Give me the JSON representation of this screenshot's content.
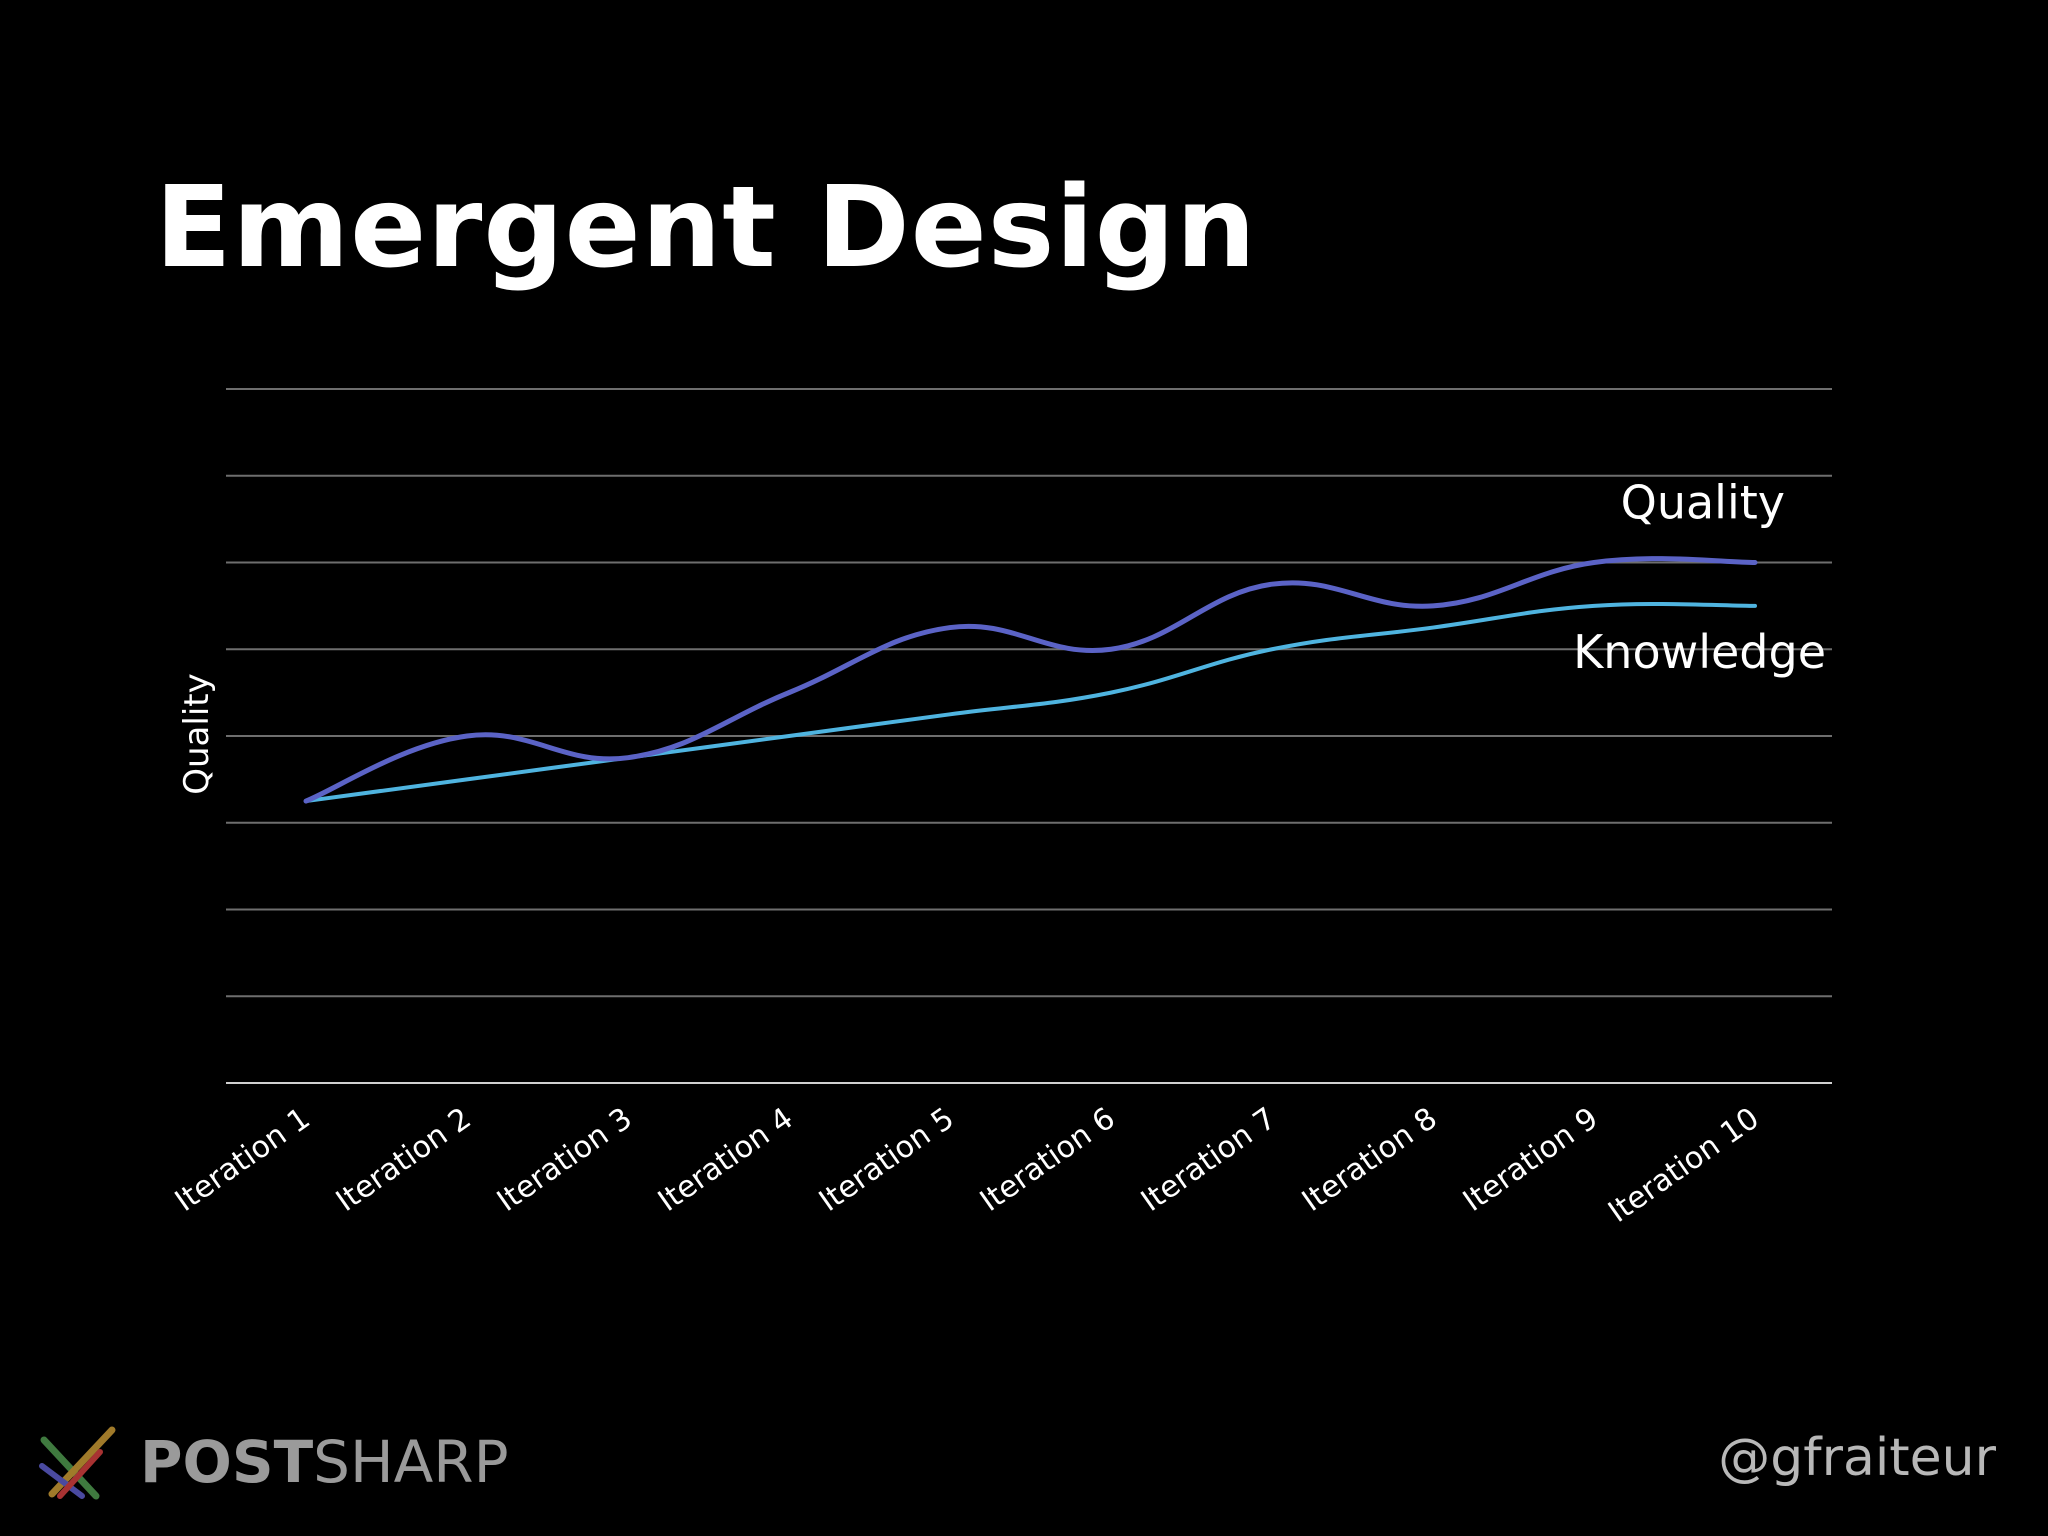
{
  "slide": {
    "title": "Emergent Design"
  },
  "footer": {
    "logo_bold": "POST",
    "logo_light": "SHARP",
    "handle": "@gfraiteur"
  },
  "colors": {
    "background": "#000000",
    "quality_line": "#5b63c6",
    "knowledge_line": "#4fb4e0",
    "gridline": "#6e6e6e",
    "text": "#ffffff"
  },
  "chart_data": {
    "type": "line",
    "ylabel": "Quality",
    "xlabel": "",
    "ylim": [
      0,
      8
    ],
    "grid": true,
    "smooth": true,
    "y_tick_labels": false,
    "legend": "inline-right",
    "categories": [
      "Iteration 1",
      "Iteration 2",
      "Iteration 3",
      "Iteration 4",
      "Iteration 5",
      "Iteration 6",
      "Iteration 7",
      "Iteration 8",
      "Iteration 9",
      "Iteration 10"
    ],
    "series": [
      {
        "name": "Quality",
        "color": "#5b63c6",
        "values": [
          3.25,
          4.0,
          3.75,
          4.5,
          5.25,
          5.0,
          5.75,
          5.5,
          6.0,
          6.0
        ]
      },
      {
        "name": "Knowledge",
        "color": "#4fb4e0",
        "values": [
          3.25,
          3.5,
          3.75,
          4.0,
          4.25,
          4.5,
          5.0,
          5.25,
          5.5,
          5.5
        ]
      }
    ]
  }
}
